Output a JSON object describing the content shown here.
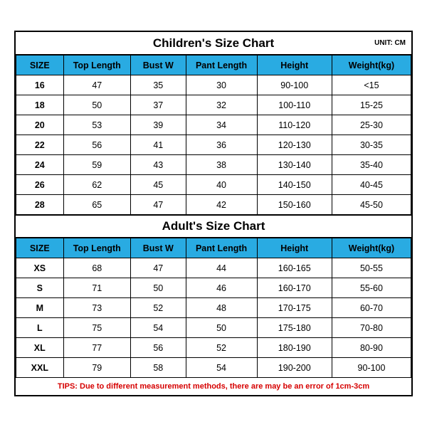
{
  "unit_label": "UNIT: CM",
  "colors": {
    "header_bg": "#29abe2",
    "border": "#000000",
    "background": "#ffffff",
    "tips_text": "#d60000"
  },
  "typography": {
    "title_fontsize_pt": 13,
    "header_fontsize_pt": 9.5,
    "cell_fontsize_pt": 9.5,
    "tips_fontsize_pt": 8.5,
    "font_family": "Arial"
  },
  "columns": [
    "SIZE",
    "Top Length",
    "Bust W",
    "Pant Length",
    "Height",
    "Weight(kg)"
  ],
  "column_widths_pct": [
    12,
    17,
    14,
    18,
    19,
    20
  ],
  "children": {
    "title": "Children's Size Chart",
    "rows": [
      [
        "16",
        "47",
        "35",
        "30",
        "90-100",
        "<15"
      ],
      [
        "18",
        "50",
        "37",
        "32",
        "100-110",
        "15-25"
      ],
      [
        "20",
        "53",
        "39",
        "34",
        "110-120",
        "25-30"
      ],
      [
        "22",
        "56",
        "41",
        "36",
        "120-130",
        "30-35"
      ],
      [
        "24",
        "59",
        "43",
        "38",
        "130-140",
        "35-40"
      ],
      [
        "26",
        "62",
        "45",
        "40",
        "140-150",
        "40-45"
      ],
      [
        "28",
        "65",
        "47",
        "42",
        "150-160",
        "45-50"
      ]
    ]
  },
  "adult": {
    "title": "Adult's Size Chart",
    "rows": [
      [
        "XS",
        "68",
        "47",
        "44",
        "160-165",
        "50-55"
      ],
      [
        "S",
        "71",
        "50",
        "46",
        "160-170",
        "55-60"
      ],
      [
        "M",
        "73",
        "52",
        "48",
        "170-175",
        "60-70"
      ],
      [
        "L",
        "75",
        "54",
        "50",
        "175-180",
        "70-80"
      ],
      [
        "XL",
        "77",
        "56",
        "52",
        "180-190",
        "80-90"
      ],
      [
        "XXL",
        "79",
        "58",
        "54",
        "190-200",
        "90-100"
      ]
    ]
  },
  "tips": "TIPS: Due to different measurement methods, there are may be an error of 1cm-3cm"
}
